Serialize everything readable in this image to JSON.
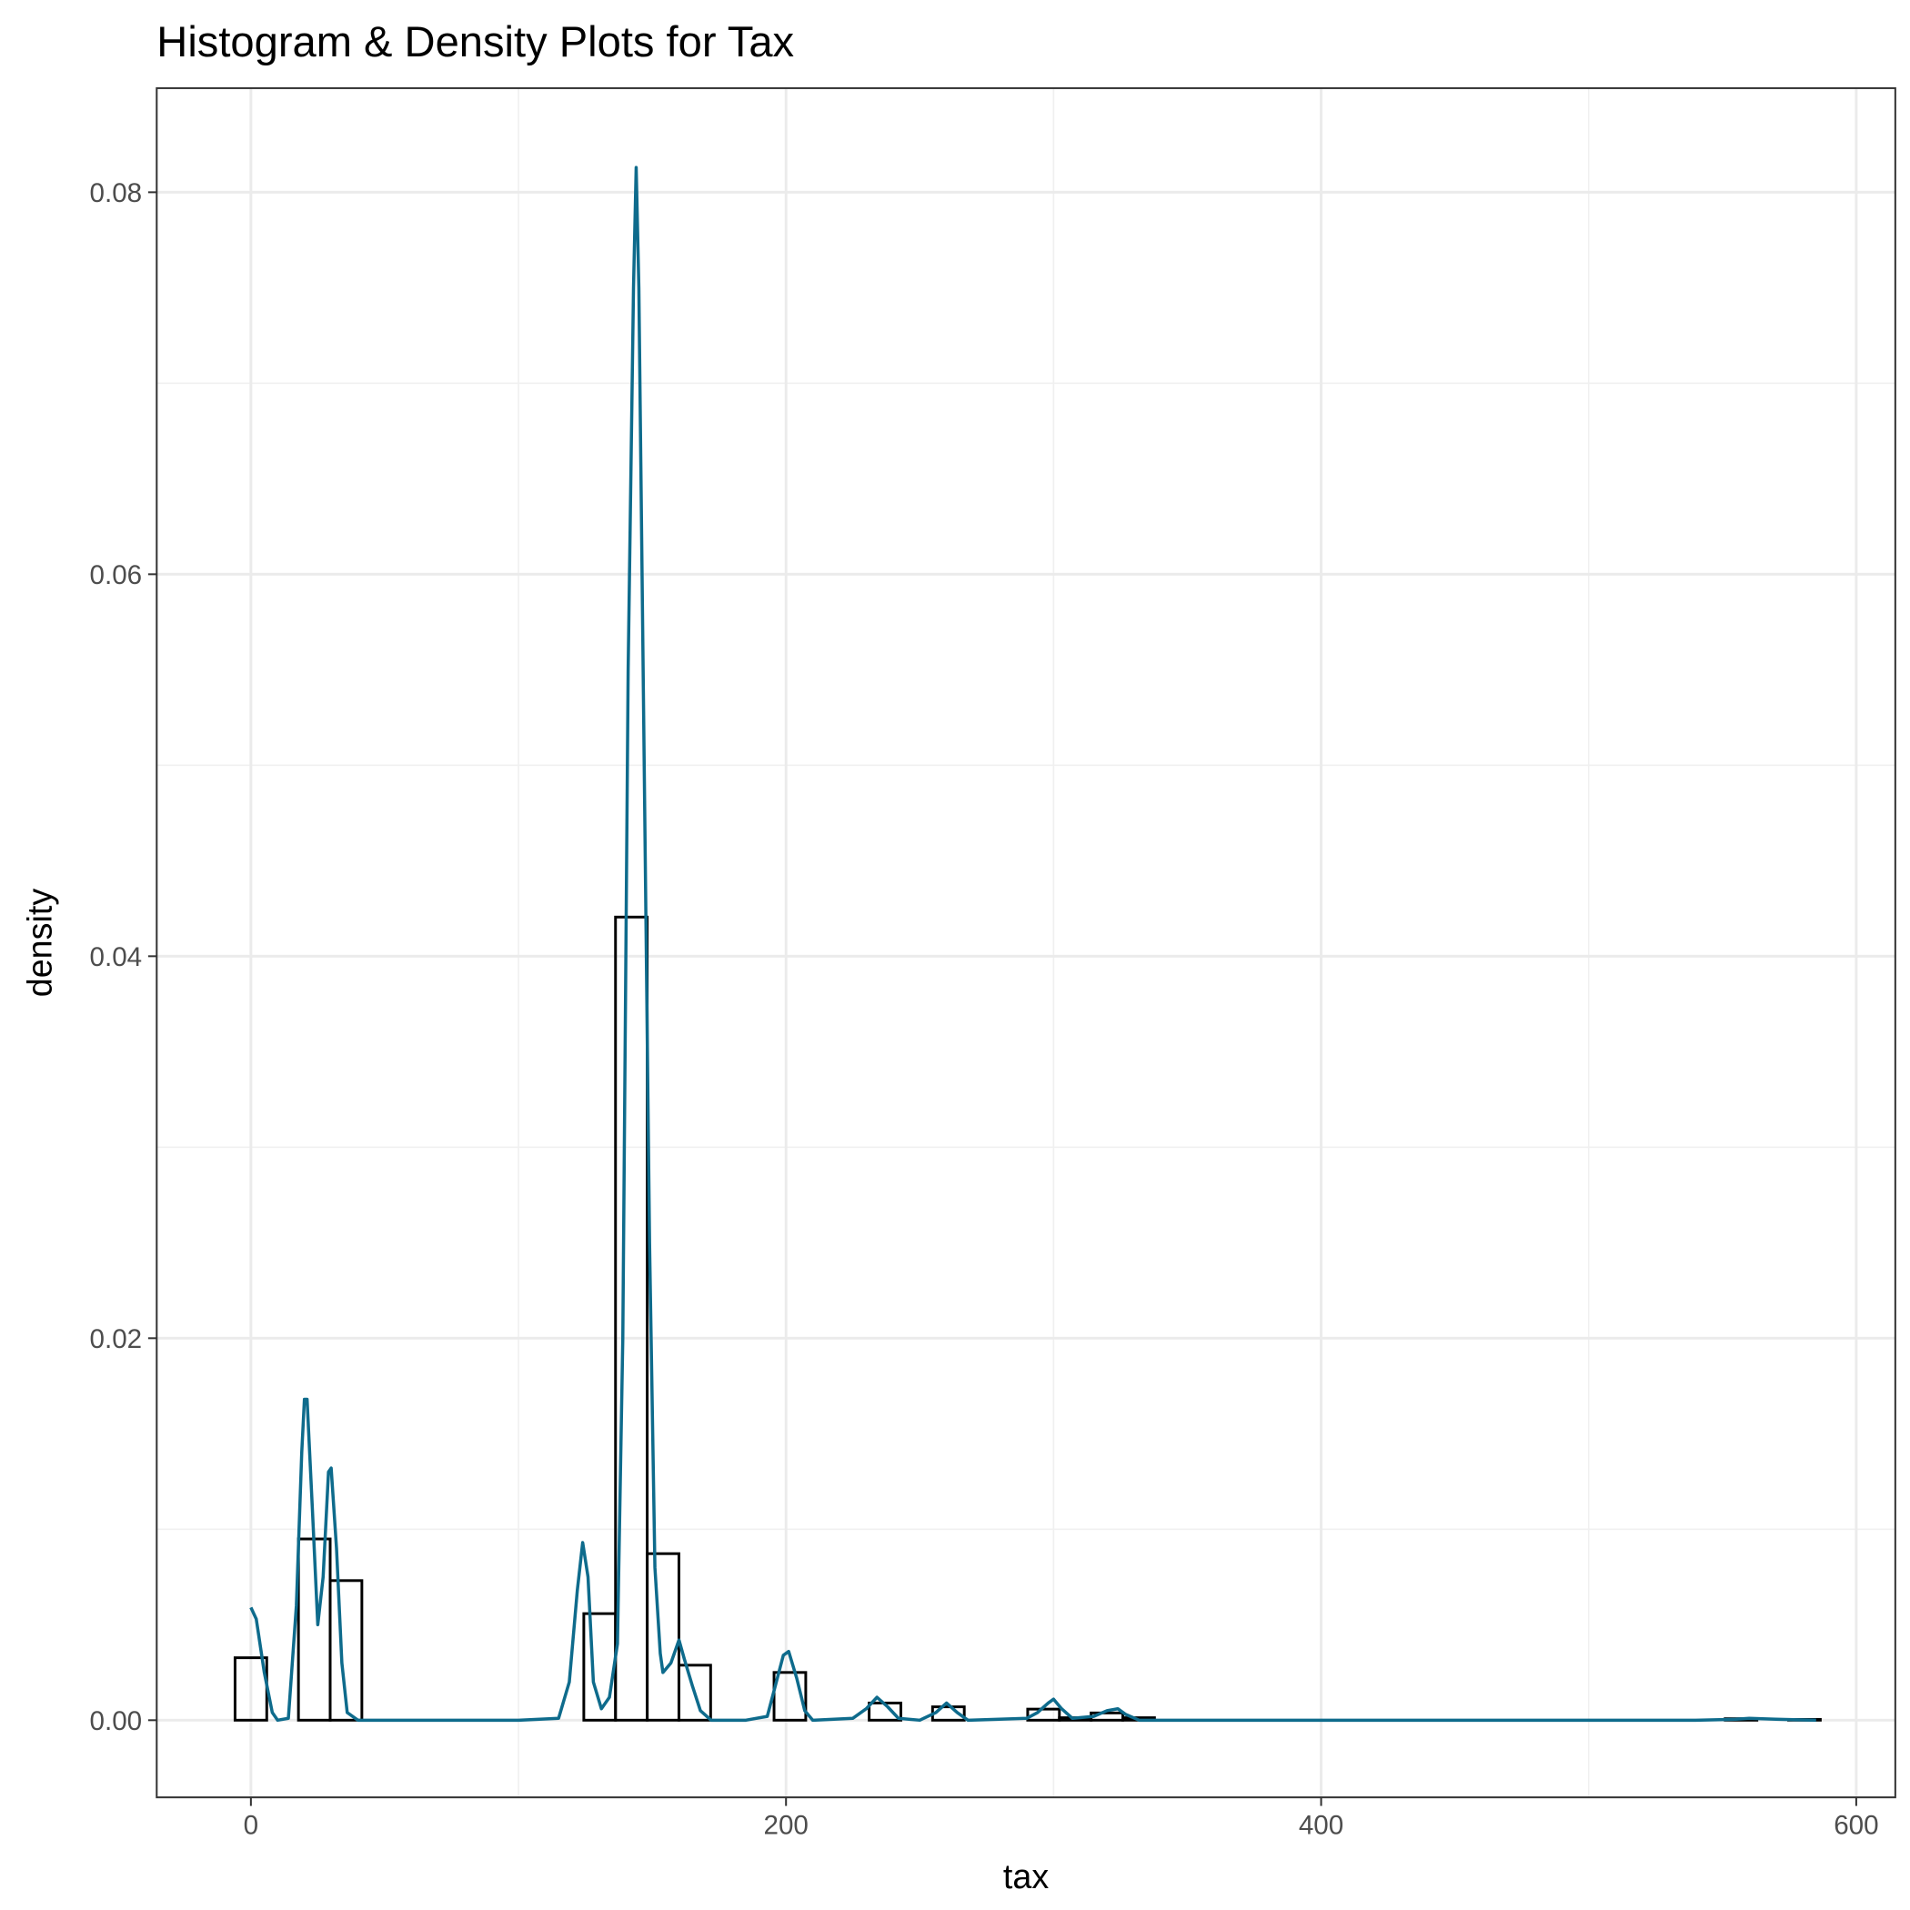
{
  "chart_data": {
    "type": "histogram",
    "title": "Histogram & Density Plots for Tax",
    "x_label": "tax",
    "y_label": "density",
    "bins": [
      -5.925,
      5.925,
      17.775,
      29.625,
      41.475,
      53.325,
      65.175,
      77.025,
      88.875,
      100.725,
      112.575,
      124.425,
      136.275,
      148.125,
      159.975,
      171.825,
      183.675,
      195.525,
      207.375,
      219.225,
      231.075,
      242.925,
      254.775,
      266.625,
      278.475,
      290.325,
      302.175,
      314.025,
      325.875,
      337.725,
      349.575,
      361.425,
      373.275,
      385.125,
      396.975,
      408.825,
      420.675,
      432.525,
      444.375,
      456.225,
      468.075,
      479.925,
      491.775,
      503.625,
      515.475,
      527.325,
      539.175,
      551.025,
      562.875,
      574.725,
      586.575
    ],
    "values": [
      0.00327,
      0,
      0.00949,
      0.00731,
      0,
      0,
      0,
      0,
      0,
      0,
      0,
      0.00558,
      0.04205,
      0.00872,
      0.00288,
      0,
      0,
      0.0025,
      0,
      0,
      0.0009,
      0,
      0.0007,
      0,
      0,
      0.00058,
      0.00013,
      0.00038,
      0.00013,
      0,
      0,
      0,
      0,
      0,
      0,
      0,
      0,
      0,
      0,
      0,
      0,
      0,
      0,
      0,
      0,
      0,
      0,
      8e-05,
      0,
      4e-05
    ],
    "color": "#000000",
    "density": {
      "type": "line",
      "color": "#0e6b8c",
      "x": [
        0,
        2,
        5,
        8,
        10,
        14,
        17,
        19,
        20,
        21,
        23,
        25,
        27,
        29,
        30,
        32,
        34,
        36,
        40,
        60,
        100,
        115,
        119,
        122,
        124,
        126,
        128,
        131,
        134,
        137,
        139,
        141,
        143,
        144,
        145,
        147,
        149,
        151,
        153,
        154,
        157,
        160,
        162,
        165,
        168,
        172,
        185,
        193,
        196,
        199,
        201,
        204,
        207,
        210,
        225,
        230,
        234,
        238,
        242,
        250,
        256,
        260,
        264,
        268,
        290,
        294,
        298,
        300,
        303,
        307,
        315,
        320,
        324,
        327,
        332,
        540,
        555,
        560,
        570,
        585
      ],
      "values": [
        0.0059,
        0.0053,
        0.0025,
        0.0004,
        0,
        0.0001,
        0.006,
        0.014,
        0.0168,
        0.0168,
        0.011,
        0.005,
        0.0075,
        0.013,
        0.0132,
        0.009,
        0.003,
        0.0004,
        0,
        0,
        0,
        0.0001,
        0.002,
        0.0068,
        0.0093,
        0.0075,
        0.002,
        0.0006,
        0.0012,
        0.004,
        0.02,
        0.055,
        0.075,
        0.0813,
        0.075,
        0.05,
        0.025,
        0.008,
        0.0035,
        0.0025,
        0.003,
        0.0042,
        0.0032,
        0.0018,
        0.0005,
        0,
        0,
        0.0002,
        0.0018,
        0.0034,
        0.0036,
        0.0022,
        0.0005,
        0,
        0.0001,
        0.0006,
        0.0012,
        0.0007,
        0.0001,
        0,
        0.0004,
        0.0009,
        0.0004,
        0,
        0.0001,
        0.0004,
        0.0009,
        0.0011,
        0.0006,
        0.0001,
        0.0002,
        0.0005,
        0.0006,
        0.0003,
        0,
        0,
        5e-05,
        0.0001,
        5e-05,
        0
      ]
    },
    "xlim": [
      -35.2,
      614.6
    ],
    "ylim": [
      -0.00404,
      0.08545
    ],
    "xticks": [
      0,
      200,
      400,
      600
    ],
    "yticks": [
      {
        "value": 0,
        "label": "0.00"
      },
      0.02,
      0.04,
      0.06,
      0.08
    ],
    "x_minor_grid": [
      100,
      300,
      500
    ],
    "y_minor_grid": [
      0.01,
      0.03,
      0.05,
      0.07
    ],
    "grid": true
  }
}
